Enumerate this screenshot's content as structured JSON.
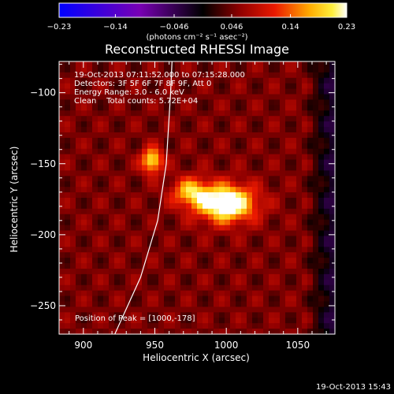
{
  "chart_data": {
    "type": "heatmap",
    "title": "Reconstructed RHESSI Image",
    "xlabel": "Heliocentric X (arcsec)",
    "ylabel": "Heliocentric Y (arcsec)",
    "xlim": [
      883,
      1076
    ],
    "ylim": [
      -270,
      -78
    ],
    "x_ticks": [
      900,
      950,
      1000,
      1050
    ],
    "x_tick_labels": [
      "900",
      "950",
      "1000",
      "1050"
    ],
    "y_ticks": [
      -100,
      -150,
      -200,
      -250
    ],
    "y_tick_labels": [
      "−100",
      "−150",
      "−200",
      "−250"
    ],
    "colorbar": {
      "range": [
        -0.23,
        0.23
      ],
      "tick_values": [
        -0.23,
        -0.14,
        -0.046,
        0.046,
        0.14,
        0.23
      ],
      "tick_labels": [
        "−0.23",
        "−0.14",
        "−0.046",
        "0.046",
        "0.14",
        "0.23"
      ],
      "unit_label": "(photons cm⁻² s⁻¹ asec⁻²)"
    },
    "info_lines": [
      "19-Oct-2013 07:11:52.000 to 07:15:28.000",
      "Detectors: 3F 5F 6F 7F 8F 9F, Att 0",
      "Energy Range: 3.0 - 6.0 keV",
      "Clean    Total counts: 5.72E+04"
    ],
    "peak_label": "Position of Peak = [1000,-178]",
    "sources": [
      {
        "x": 1000,
        "y": -178,
        "sigma_x": 14,
        "sigma_y": 9,
        "amp": 0.23
      },
      {
        "x": 975,
        "y": -170,
        "sigma_x": 9,
        "sigma_y": 7,
        "amp": 0.13
      },
      {
        "x": 948,
        "y": -148,
        "sigma_x": 5,
        "sigma_y": 6,
        "amp": 0.17
      }
    ],
    "limb_curve": [
      [
        922,
        -270
      ],
      [
        940,
        -230
      ],
      [
        952,
        -190
      ],
      [
        958,
        -150
      ],
      [
        961,
        -100
      ],
      [
        962,
        -78
      ]
    ],
    "timestamp": "19-Oct-2013 15:43"
  }
}
